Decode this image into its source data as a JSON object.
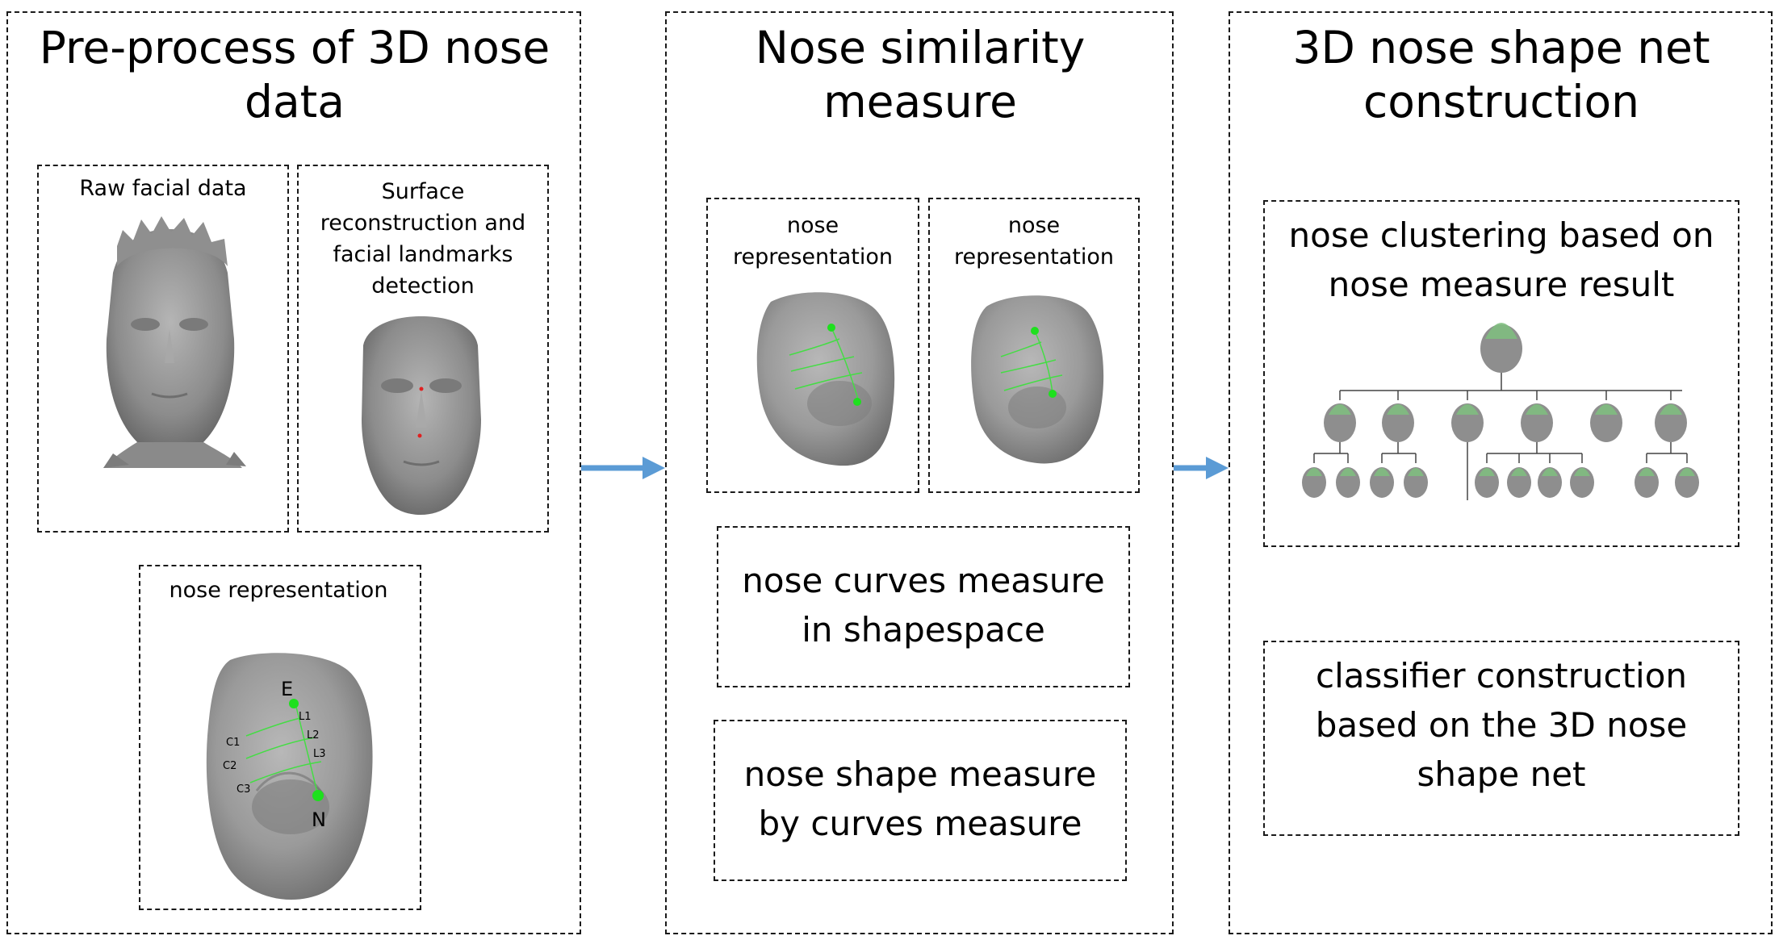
{
  "panels": {
    "preprocess": {
      "title": "Pre-process of 3D nose data",
      "raw_label": "Raw facial data",
      "surface_label": "Surface reconstruction and facial landmarks detection",
      "nose_rep_label": "nose representation",
      "landmarks": {
        "top": "E",
        "bottom": "N",
        "lines": [
          "L1",
          "L2",
          "L3"
        ],
        "curves": [
          "C1",
          "C2",
          "C3"
        ]
      }
    },
    "similarity": {
      "title": "Nose similarity measure",
      "rep_left_label": "nose representation",
      "rep_right_label": "nose representation",
      "curves_measure": "nose curves measure in shapespace",
      "shape_measure": "nose shape measure by curves measure"
    },
    "construction": {
      "title": "3D nose shape net construction",
      "clustering": "nose clustering based on nose measure result",
      "classifier": "classifier construction based on the 3D nose shape net"
    }
  },
  "colors": {
    "arrow": "#5b9bd5",
    "mesh": "#9a9a9a",
    "landmark": "#1ee01e",
    "curve": "#44dd44",
    "red_marker": "#e02020",
    "nose_tint": "#7fbf7f"
  }
}
